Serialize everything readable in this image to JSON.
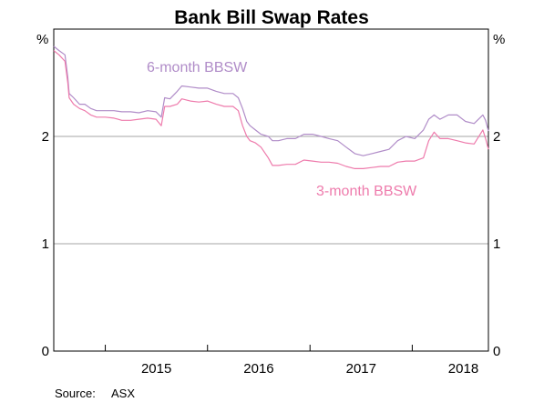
{
  "chart_data": {
    "type": "line",
    "title": "Bank Bill Swap Rates",
    "y_unit_left": "%",
    "y_unit_right": "%",
    "ylim": [
      0,
      3
    ],
    "yticks": [
      0,
      1,
      2
    ],
    "ytick_labels": [
      "0",
      "1",
      "2"
    ],
    "xlim": [
      "2014-07-01",
      "2018-09-30"
    ],
    "year_labels": [
      "2015",
      "2016",
      "2017",
      "2018"
    ],
    "grid": "horizontal",
    "source_label": "Source:",
    "source_value": "ASX",
    "series": [
      {
        "name": "6-month BBSW",
        "color": "#b08cc8",
        "points": [
          [
            "2014-07-01",
            2.84
          ],
          [
            "2014-07-20",
            2.8
          ],
          [
            "2014-08-10",
            2.76
          ],
          [
            "2014-08-20",
            2.55
          ],
          [
            "2014-08-25",
            2.4
          ],
          [
            "2014-09-10",
            2.36
          ],
          [
            "2014-10-01",
            2.3
          ],
          [
            "2014-10-20",
            2.3
          ],
          [
            "2014-11-10",
            2.26
          ],
          [
            "2014-12-01",
            2.24
          ],
          [
            "2015-01-01",
            2.24
          ],
          [
            "2015-02-01",
            2.24
          ],
          [
            "2015-03-01",
            2.23
          ],
          [
            "2015-04-01",
            2.23
          ],
          [
            "2015-05-01",
            2.22
          ],
          [
            "2015-06-01",
            2.24
          ],
          [
            "2015-07-01",
            2.23
          ],
          [
            "2015-07-20",
            2.18
          ],
          [
            "2015-08-01",
            2.36
          ],
          [
            "2015-08-20",
            2.35
          ],
          [
            "2015-09-15",
            2.42
          ],
          [
            "2015-10-01",
            2.47
          ],
          [
            "2015-11-01",
            2.46
          ],
          [
            "2015-12-01",
            2.45
          ],
          [
            "2016-01-01",
            2.45
          ],
          [
            "2016-02-01",
            2.42
          ],
          [
            "2016-03-01",
            2.4
          ],
          [
            "2016-04-01",
            2.4
          ],
          [
            "2016-04-20",
            2.36
          ],
          [
            "2016-05-05",
            2.26
          ],
          [
            "2016-05-20",
            2.14
          ],
          [
            "2016-06-01",
            2.1
          ],
          [
            "2016-06-20",
            2.06
          ],
          [
            "2016-07-10",
            2.02
          ],
          [
            "2016-08-05",
            2.0
          ],
          [
            "2016-08-20",
            1.96
          ],
          [
            "2016-09-10",
            1.96
          ],
          [
            "2016-10-10",
            1.98
          ],
          [
            "2016-11-10",
            1.98
          ],
          [
            "2016-12-10",
            2.02
          ],
          [
            "2017-01-10",
            2.02
          ],
          [
            "2017-02-10",
            2.0
          ],
          [
            "2017-03-10",
            1.98
          ],
          [
            "2017-04-10",
            1.96
          ],
          [
            "2017-05-10",
            1.9
          ],
          [
            "2017-06-10",
            1.84
          ],
          [
            "2017-07-10",
            1.82
          ],
          [
            "2017-08-10",
            1.84
          ],
          [
            "2017-09-10",
            1.86
          ],
          [
            "2017-10-10",
            1.88
          ],
          [
            "2017-11-10",
            1.96
          ],
          [
            "2017-12-10",
            2.0
          ],
          [
            "2018-01-10",
            1.98
          ],
          [
            "2018-02-10",
            2.06
          ],
          [
            "2018-03-01",
            2.16
          ],
          [
            "2018-03-20",
            2.2
          ],
          [
            "2018-04-10",
            2.16
          ],
          [
            "2018-05-10",
            2.2
          ],
          [
            "2018-06-10",
            2.2
          ],
          [
            "2018-07-10",
            2.14
          ],
          [
            "2018-08-10",
            2.12
          ],
          [
            "2018-09-10",
            2.2
          ],
          [
            "2018-09-20",
            2.15
          ],
          [
            "2018-09-30",
            2.05
          ]
        ]
      },
      {
        "name": "3-month BBSW",
        "color": "#ee7bac",
        "points": [
          [
            "2014-07-01",
            2.8
          ],
          [
            "2014-07-20",
            2.76
          ],
          [
            "2014-08-10",
            2.7
          ],
          [
            "2014-08-20",
            2.5
          ],
          [
            "2014-08-25",
            2.36
          ],
          [
            "2014-09-10",
            2.3
          ],
          [
            "2014-10-01",
            2.26
          ],
          [
            "2014-10-20",
            2.24
          ],
          [
            "2014-11-10",
            2.2
          ],
          [
            "2014-12-01",
            2.18
          ],
          [
            "2015-01-01",
            2.18
          ],
          [
            "2015-02-01",
            2.17
          ],
          [
            "2015-03-01",
            2.15
          ],
          [
            "2015-04-01",
            2.15
          ],
          [
            "2015-05-01",
            2.16
          ],
          [
            "2015-06-01",
            2.17
          ],
          [
            "2015-07-01",
            2.16
          ],
          [
            "2015-07-20",
            2.1
          ],
          [
            "2015-08-01",
            2.28
          ],
          [
            "2015-08-20",
            2.28
          ],
          [
            "2015-09-15",
            2.3
          ],
          [
            "2015-10-01",
            2.35
          ],
          [
            "2015-11-01",
            2.33
          ],
          [
            "2015-12-01",
            2.32
          ],
          [
            "2016-01-01",
            2.33
          ],
          [
            "2016-02-01",
            2.3
          ],
          [
            "2016-03-01",
            2.28
          ],
          [
            "2016-04-01",
            2.28
          ],
          [
            "2016-04-20",
            2.24
          ],
          [
            "2016-05-05",
            2.1
          ],
          [
            "2016-05-20",
            2.0
          ],
          [
            "2016-06-01",
            1.96
          ],
          [
            "2016-06-20",
            1.94
          ],
          [
            "2016-07-10",
            1.9
          ],
          [
            "2016-08-05",
            1.8
          ],
          [
            "2016-08-20",
            1.73
          ],
          [
            "2016-09-10",
            1.73
          ],
          [
            "2016-10-10",
            1.74
          ],
          [
            "2016-11-10",
            1.74
          ],
          [
            "2016-12-10",
            1.78
          ],
          [
            "2017-01-10",
            1.77
          ],
          [
            "2017-02-10",
            1.76
          ],
          [
            "2017-03-10",
            1.76
          ],
          [
            "2017-04-10",
            1.75
          ],
          [
            "2017-05-10",
            1.72
          ],
          [
            "2017-06-10",
            1.7
          ],
          [
            "2017-07-10",
            1.7
          ],
          [
            "2017-08-10",
            1.71
          ],
          [
            "2017-09-10",
            1.72
          ],
          [
            "2017-10-10",
            1.72
          ],
          [
            "2017-11-10",
            1.76
          ],
          [
            "2017-12-10",
            1.77
          ],
          [
            "2018-01-10",
            1.77
          ],
          [
            "2018-02-10",
            1.8
          ],
          [
            "2018-03-01",
            1.96
          ],
          [
            "2018-03-20",
            2.04
          ],
          [
            "2018-04-10",
            1.98
          ],
          [
            "2018-05-10",
            1.98
          ],
          [
            "2018-06-10",
            1.96
          ],
          [
            "2018-07-10",
            1.94
          ],
          [
            "2018-08-10",
            1.93
          ],
          [
            "2018-09-10",
            2.06
          ],
          [
            "2018-09-20",
            1.98
          ],
          [
            "2018-09-30",
            1.88
          ]
        ]
      }
    ]
  }
}
